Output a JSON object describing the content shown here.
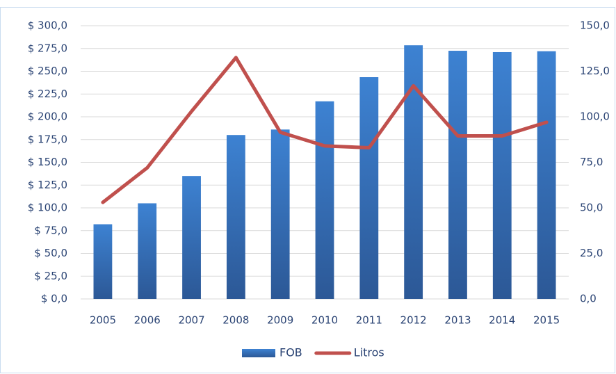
{
  "chart_data": {
    "type": "bar-line",
    "categories": [
      "2005",
      "2006",
      "2007",
      "2008",
      "2009",
      "2010",
      "2011",
      "2012",
      "2013",
      "2014",
      "2015"
    ],
    "series": [
      {
        "name": "FOB",
        "type": "bar",
        "color": "#3a78c6",
        "values": [
          82,
          105,
          135,
          180,
          186,
          217,
          243.5,
          278.5,
          272.5,
          271,
          272
        ]
      },
      {
        "name": "Litros",
        "type": "line",
        "axis": "y2",
        "color": "#c0504d",
        "values": [
          53,
          72,
          103,
          132.5,
          91.5,
          84,
          83,
          117,
          89.5,
          89.5,
          97
        ]
      }
    ],
    "ylim": [
      0,
      300
    ],
    "yticks": [
      {
        "value": 0,
        "label": "$ 0,0"
      },
      {
        "value": 25,
        "label": "$ 25,0"
      },
      {
        "value": 50,
        "label": "$ 50,0"
      },
      {
        "value": 75,
        "label": "$ 75,0"
      },
      {
        "value": 100,
        "label": "$ 100,0"
      },
      {
        "value": 125,
        "label": "$ 125,0"
      },
      {
        "value": 150,
        "label": "$ 150,0"
      },
      {
        "value": 175,
        "label": "$ 175,0"
      },
      {
        "value": 200,
        "label": "$ 200,0"
      },
      {
        "value": 225,
        "label": "$ 225,0"
      },
      {
        "value": 250,
        "label": "$ 250,0"
      },
      {
        "value": 275,
        "label": "$ 275,0"
      },
      {
        "value": 300,
        "label": "$ 300,0"
      }
    ],
    "y2lim": [
      0,
      150
    ],
    "y2ticks": [
      {
        "value": 0,
        "label": "0,0"
      },
      {
        "value": 25,
        "label": "25,0"
      },
      {
        "value": 50,
        "label": "50,0"
      },
      {
        "value": 75,
        "label": "75,0"
      },
      {
        "value": 100,
        "label": "100,0"
      },
      {
        "value": 125,
        "label": "125,0"
      },
      {
        "value": 150,
        "label": "150,0"
      }
    ],
    "grid": true,
    "legend": "bottom"
  }
}
